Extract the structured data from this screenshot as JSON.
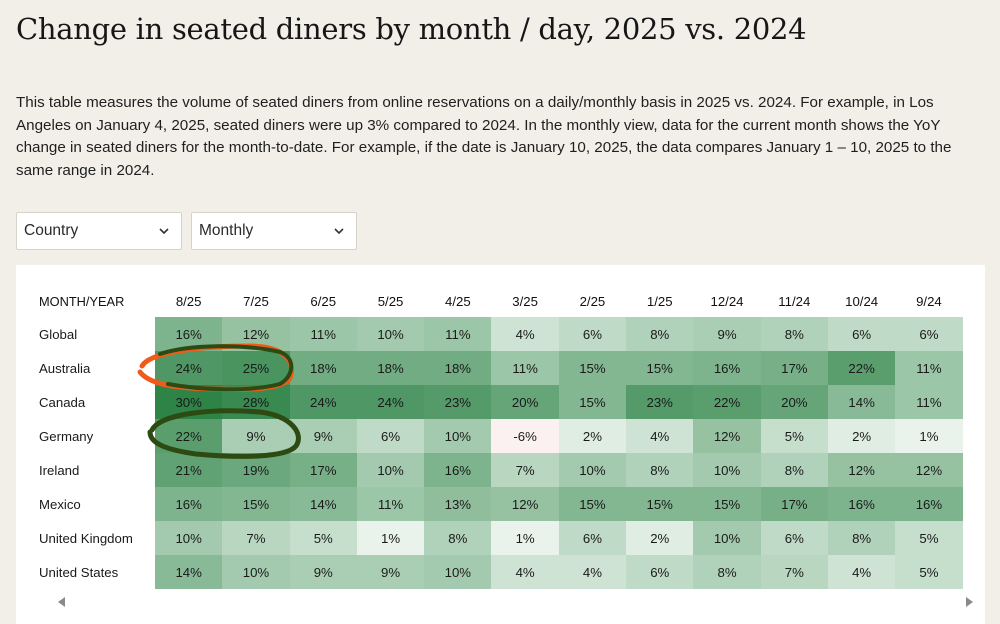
{
  "page": {
    "title": "Change in seated diners by month / day, 2025 vs. 2024",
    "description": "This table measures the volume of seated diners from online reservations on a daily/monthly basis in 2025 vs. 2024. For example, in Los Angeles on January 4, 2025, seated diners were up 3% compared to 2024. In the monthly view, data for the current month shows the YoY change in seated diners for the month-to-date. For example, if the date is January 10, 2025, the data compares January 1 – 10, 2025 to the same range in 2024."
  },
  "filters": {
    "region_select": "Country",
    "period_select": "Monthly"
  },
  "table": {
    "corner_label": "MONTH/YEAR",
    "columns": [
      "8/25",
      "7/25",
      "6/25",
      "5/25",
      "4/25",
      "3/25",
      "2/25",
      "1/25",
      "12/24",
      "11/24",
      "10/24",
      "9/24"
    ],
    "rows": [
      {
        "label": "Global",
        "values": [
          16,
          12,
          11,
          10,
          11,
          4,
          6,
          8,
          9,
          8,
          6,
          6
        ]
      },
      {
        "label": "Australia",
        "values": [
          24,
          25,
          18,
          18,
          18,
          11,
          15,
          15,
          16,
          17,
          22,
          11
        ]
      },
      {
        "label": "Canada",
        "values": [
          30,
          28,
          24,
          24,
          23,
          20,
          15,
          23,
          22,
          20,
          14,
          11
        ]
      },
      {
        "label": "Germany",
        "values": [
          22,
          9,
          9,
          6,
          10,
          -6,
          2,
          4,
          12,
          5,
          2,
          1
        ]
      },
      {
        "label": "Ireland",
        "values": [
          21,
          19,
          17,
          10,
          16,
          7,
          10,
          8,
          10,
          8,
          12,
          12
        ]
      },
      {
        "label": "Mexico",
        "values": [
          16,
          15,
          14,
          11,
          13,
          12,
          15,
          15,
          15,
          17,
          16,
          16
        ]
      },
      {
        "label": "United Kingdom",
        "values": [
          10,
          7,
          5,
          1,
          8,
          1,
          6,
          2,
          10,
          6,
          8,
          5
        ]
      },
      {
        "label": "United States",
        "values": [
          14,
          10,
          9,
          9,
          10,
          4,
          4,
          6,
          8,
          7,
          4,
          5
        ]
      }
    ],
    "value_suffix": "%"
  },
  "colors": {
    "background": "#f1efe8",
    "heat_low": "#f6fbf7",
    "heat_high": "#2e8447",
    "negative": "#fbf1f1",
    "annotation_orange": "#f05a1a",
    "annotation_green": "#2d4a12"
  },
  "icons": {
    "dropdown": "chevron-down-icon",
    "scroll_left": "triangle-left-icon",
    "scroll_right": "triangle-right-icon"
  }
}
